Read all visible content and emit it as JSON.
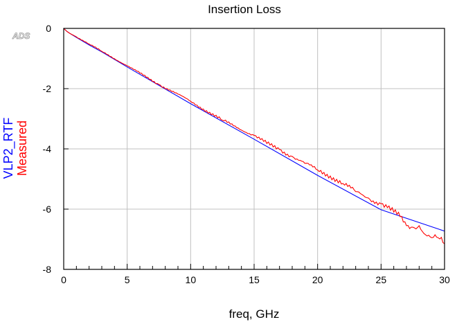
{
  "watermark": "ADS",
  "chart_data": {
    "type": "line",
    "title": "Insertion Loss",
    "xlabel": "freq, GHz",
    "ylabels": [
      "VLP2_RTF",
      "Measured"
    ],
    "xlim": [
      0,
      30
    ],
    "ylim": [
      -8,
      0
    ],
    "xticks": [
      0,
      5,
      10,
      15,
      20,
      25,
      30
    ],
    "yticks": [
      0,
      -2,
      -4,
      -6,
      -8
    ],
    "x_minor_step": 1,
    "grid": true,
    "series": [
      {
        "name": "VLP2_RTF",
        "color": "#0000ff",
        "x": [
          0,
          0.25,
          0.5,
          1,
          2,
          3,
          5,
          10,
          15,
          20,
          25,
          30
        ],
        "y": [
          0,
          -0.1,
          -0.17,
          -0.3,
          -0.55,
          -0.78,
          -1.28,
          -2.5,
          -3.68,
          -4.88,
          -6.02,
          -6.73
        ]
      },
      {
        "name": "Measured",
        "color": "#ff0000",
        "x": [
          0,
          0.25,
          0.5,
          1,
          2,
          3,
          5,
          7.5,
          10,
          12.5,
          15,
          16,
          17,
          18,
          19,
          20,
          21,
          22,
          23,
          24,
          25,
          25.5,
          26,
          26.5,
          27,
          27.5,
          28,
          28.5,
          29,
          29.5,
          30
        ],
        "y": [
          0,
          -0.1,
          -0.17,
          -0.28,
          -0.52,
          -0.76,
          -1.24,
          -1.86,
          -2.42,
          -3.05,
          -3.55,
          -3.82,
          -4.02,
          -4.25,
          -4.48,
          -4.7,
          -4.9,
          -5.15,
          -5.42,
          -5.63,
          -5.82,
          -5.95,
          -6.1,
          -6.25,
          -6.55,
          -6.6,
          -6.55,
          -6.85,
          -6.95,
          -6.95,
          -7.15
        ]
      }
    ]
  }
}
